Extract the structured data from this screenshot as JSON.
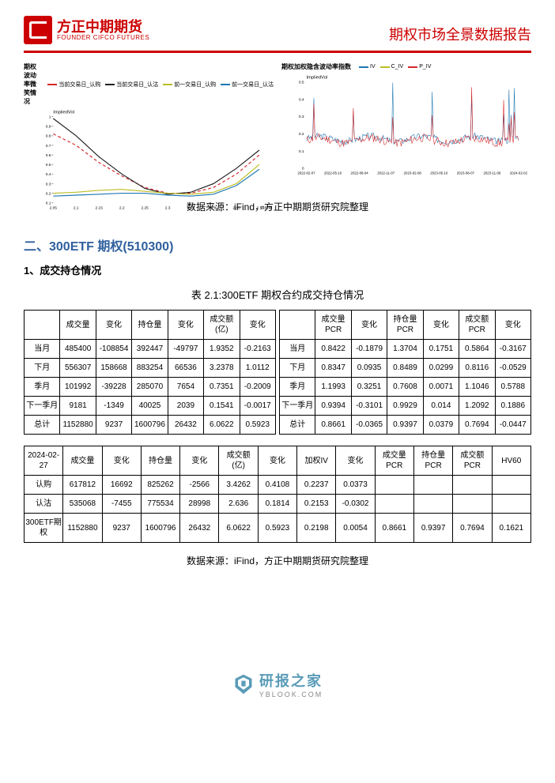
{
  "header": {
    "logo_cn": "方正中期期货",
    "logo_en": "FOUNDER CIFCO FUTURES",
    "report_title": "期权市场全景数据报告"
  },
  "chart_left": {
    "title": "期权波动率微笑情况",
    "y_label": "ImpliedVol",
    "x_label": "换价格",
    "legend": [
      {
        "label": "当前交易日_认购",
        "color": "#d62728"
      },
      {
        "label": "当前交易日_认沽",
        "color": "#1f1f1f"
      },
      {
        "label": "前一交易日_认购",
        "color": "#bcbd22"
      },
      {
        "label": "前一交易日_认沽",
        "color": "#1f77b4"
      }
    ],
    "x_ticks": [
      "2.05",
      "2.1",
      "2.15",
      "2.2",
      "2.25",
      "2.3",
      "2.35",
      "2.4",
      "2.45",
      "2.5"
    ],
    "y_ticks": [
      "0.1",
      "0.2",
      "0.3",
      "0.4",
      "0.5",
      "0.6",
      "0.7",
      "0.8",
      "0.9",
      "1"
    ],
    "ylim": [
      0.1,
      1.0
    ],
    "series": {
      "red_dashed": {
        "x": [
          2.05,
          2.1,
          2.15,
          2.2,
          2.25,
          2.3,
          2.35,
          2.4,
          2.45,
          2.5
        ],
        "y": [
          0.82,
          0.7,
          0.52,
          0.38,
          0.26,
          0.2,
          0.2,
          0.26,
          0.4,
          0.6
        ],
        "color": "#d62728",
        "dash": true
      },
      "black_solid": {
        "x": [
          2.05,
          2.1,
          2.15,
          2.2,
          2.25,
          2.3,
          2.35,
          2.4,
          2.45,
          2.5
        ],
        "y": [
          0.98,
          0.8,
          0.58,
          0.4,
          0.25,
          0.19,
          0.21,
          0.3,
          0.46,
          0.65
        ],
        "color": "#1f1f1f",
        "dash": false
      },
      "gold": {
        "x": [
          2.05,
          2.1,
          2.15,
          2.2,
          2.25,
          2.3,
          2.35,
          2.4,
          2.45,
          2.5
        ],
        "y": [
          0.2,
          0.21,
          0.23,
          0.24,
          0.22,
          0.2,
          0.19,
          0.21,
          0.3,
          0.5
        ],
        "color": "#bcbd22",
        "dash": false
      },
      "blue": {
        "x": [
          2.05,
          2.1,
          2.15,
          2.2,
          2.25,
          2.3,
          2.35,
          2.4,
          2.45,
          2.5
        ],
        "y": [
          0.17,
          0.18,
          0.19,
          0.2,
          0.2,
          0.18,
          0.17,
          0.19,
          0.28,
          0.45
        ],
        "color": "#1f77b4",
        "dash": false
      }
    }
  },
  "chart_right": {
    "title": "期权加权隐含波动率指数",
    "y_label": "ImpliedVol",
    "legend": [
      {
        "label": "IV",
        "color": "#1f77b4"
      },
      {
        "label": "C_IV",
        "color": "#bcbd22"
      },
      {
        "label": "P_IV",
        "color": "#d62728"
      }
    ],
    "x_ticks": [
      "2022-02-07",
      "2022-05-10",
      "2022-08-04",
      "2022-11-07",
      "2023-02-08",
      "2023-05-10",
      "2023-08-07",
      "2023-11-06",
      "2024-02-02"
    ],
    "y_ticks": [
      "0",
      "0.1",
      "0.2",
      "0.3",
      "0.4",
      "0.5"
    ],
    "ylim": [
      0,
      0.5
    ],
    "color_iv": "#1f77b4",
    "color_piv": "#d62728"
  },
  "source_text": "数据来源：iFind，方正中期期货研究院整理",
  "section2_heading": "二、300ETF 期权(510300)",
  "section2_sub": "1、成交持仓情况",
  "table_caption": "表 2.1:300ETF 期权合约成交持仓情况",
  "table1_left": {
    "headers": [
      "",
      "成交量",
      "变化",
      "持仓量",
      "变化",
      "成交额(亿)",
      "变化"
    ],
    "rows": [
      [
        "当月",
        "485400",
        "-108854",
        "392447",
        "-49797",
        "1.9352",
        "-0.2163"
      ],
      [
        "下月",
        "556307",
        "158668",
        "883254",
        "66536",
        "3.2378",
        "1.0112"
      ],
      [
        "季月",
        "101992",
        "-39228",
        "285070",
        "7654",
        "0.7351",
        "-0.2009"
      ],
      [
        "下一季月",
        "9181",
        "-1349",
        "40025",
        "2039",
        "0.1541",
        "-0.0017"
      ],
      [
        "总计",
        "1152880",
        "9237",
        "1600796",
        "26432",
        "6.0622",
        "0.5923"
      ]
    ]
  },
  "table1_right": {
    "headers": [
      "",
      "成交量PCR",
      "变化",
      "持仓量PCR",
      "变化",
      "成交额PCR",
      "变化"
    ],
    "rows": [
      [
        "当月",
        "0.8422",
        "-0.1879",
        "1.3704",
        "0.1751",
        "0.5864",
        "-0.3167"
      ],
      [
        "下月",
        "0.8347",
        "0.0935",
        "0.8489",
        "0.0299",
        "0.8116",
        "-0.0529"
      ],
      [
        "季月",
        "1.1993",
        "0.3251",
        "0.7608",
        "0.0071",
        "1.1046",
        "0.5788"
      ],
      [
        "下一季月",
        "0.9394",
        "-0.3101",
        "0.9929",
        "0.014",
        "1.2092",
        "0.1886"
      ],
      [
        "总计",
        "0.8661",
        "-0.0365",
        "0.9397",
        "0.0379",
        "0.7694",
        "-0.0447"
      ]
    ]
  },
  "table2": {
    "headers": [
      "2024-02-27",
      "成交量",
      "变化",
      "持仓量",
      "变化",
      "成交额(亿)",
      "变化",
      "加权IV",
      "变化",
      "成交量PCR",
      "持仓量PCR",
      "成交额PCR",
      "HV60"
    ],
    "rows": [
      [
        "认购",
        "617812",
        "16692",
        "825262",
        "-2566",
        "3.4262",
        "0.4108",
        "0.2237",
        "0.0373",
        "",
        "",
        "",
        ""
      ],
      [
        "认沽",
        "535068",
        "-7455",
        "775534",
        "28998",
        "2.636",
        "0.1814",
        "0.2153",
        "-0.0302",
        "",
        "",
        "",
        ""
      ],
      [
        "300ETF期权",
        "1152880",
        "9237",
        "1600796",
        "26432",
        "6.0622",
        "0.5923",
        "0.2198",
        "0.0054",
        "0.8661",
        "0.9397",
        "0.7694",
        "0.1621"
      ]
    ]
  },
  "footer": {
    "brand_cn": "研报之家",
    "brand_en": "YBLOOK.COM"
  }
}
